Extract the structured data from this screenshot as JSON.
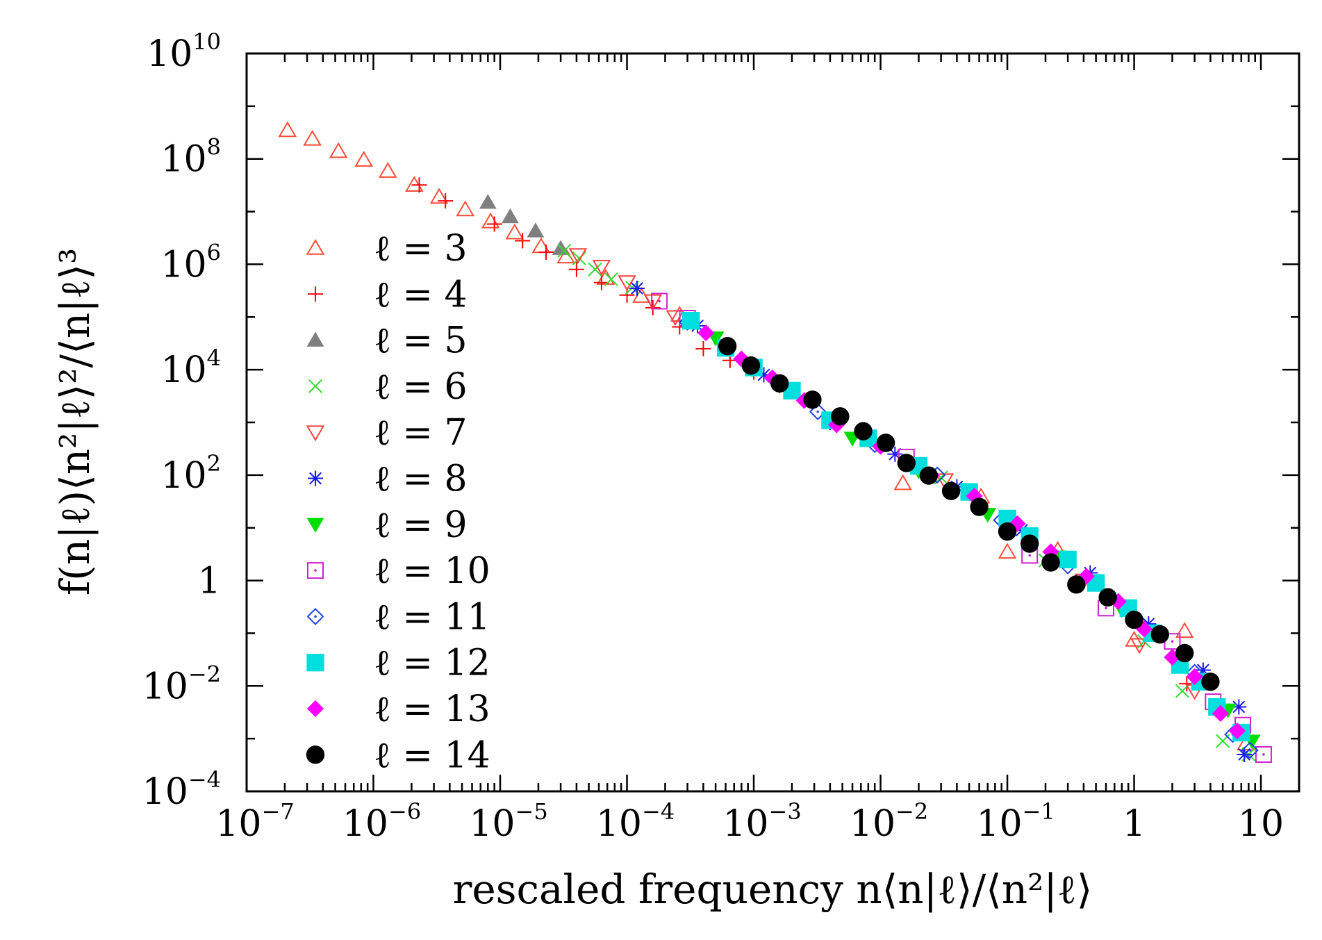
{
  "chart_data": {
    "type": "scatter",
    "xscale": "log",
    "yscale": "log",
    "xlim": [
      1e-07,
      20
    ],
    "ylim": [
      0.0001,
      10000000000.0
    ],
    "grid": false,
    "legend_position": "left",
    "xlabel": "rescaled frequency n⟨n|ℓ⟩/⟨n²|ℓ⟩",
    "ylabel": "f(n|ℓ)⟨n²|ℓ⟩²/⟨n|ℓ⟩³",
    "x_ticks": [
      {
        "value": 1e-07,
        "base": "10",
        "exp": "−7"
      },
      {
        "value": 1e-06,
        "base": "10",
        "exp": "−6"
      },
      {
        "value": 1e-05,
        "base": "10",
        "exp": "−5"
      },
      {
        "value": 0.0001,
        "base": "10",
        "exp": "−4"
      },
      {
        "value": 0.001,
        "base": "10",
        "exp": "−3"
      },
      {
        "value": 0.01,
        "base": "10",
        "exp": "−2"
      },
      {
        "value": 0.1,
        "base": "10",
        "exp": "−1"
      },
      {
        "value": 1,
        "base": "1",
        "exp": ""
      },
      {
        "value": 10,
        "base": "10",
        "exp": ""
      }
    ],
    "y_ticks": [
      {
        "value": 0.0001,
        "base": "10",
        "exp": "−4"
      },
      {
        "value": 0.01,
        "base": "10",
        "exp": "−2"
      },
      {
        "value": 1,
        "base": "1",
        "exp": ""
      },
      {
        "value": 100,
        "base": "10",
        "exp": "2"
      },
      {
        "value": 10000.0,
        "base": "10",
        "exp": "4"
      },
      {
        "value": 1000000.0,
        "base": "10",
        "exp": "6"
      },
      {
        "value": 100000000.0,
        "base": "10",
        "exp": "8"
      },
      {
        "value": 10000000000.0,
        "base": "10",
        "exp": "10"
      }
    ],
    "series": [
      {
        "name": "ℓ = 3",
        "marker": "triangle-open",
        "color": "#ff4d38",
        "points": [
          [
            2.1e-07,
            350000000.0
          ],
          [
            3.3e-07,
            240000000.0
          ],
          [
            5.3e-07,
            140000000.0
          ],
          [
            8.4e-07,
            96000000.0
          ],
          [
            1.3e-06,
            59000000.0
          ],
          [
            2.1e-06,
            32000000.0
          ],
          [
            3.3e-06,
            19000000.0
          ],
          [
            5.3e-06,
            11000000.0
          ],
          [
            8.4e-06,
            6500000.0
          ],
          [
            1.3e-05,
            4000000.0
          ],
          [
            2.1e-05,
            2200000.0
          ],
          [
            3.3e-05,
            1400000.0
          ],
          [
            6.8e-05,
            550000.0
          ],
          [
            0.00013,
            250000.0
          ],
          [
            0.00026,
            110000.0
          ],
          [
            0.015,
            70
          ],
          [
            0.062,
            39
          ],
          [
            0.1,
            3.5
          ],
          [
            0.25,
            3.8
          ],
          [
            1.0,
            0.075
          ],
          [
            2.5,
            0.11
          ],
          [
            7.6,
            0.0008
          ]
        ]
      },
      {
        "name": "ℓ = 4",
        "marker": "plus",
        "color": "#ff0000",
        "points": [
          [
            2.3e-06,
            32000000.0
          ],
          [
            3.7e-06,
            16000000.0
          ],
          [
            9e-06,
            5800000.0
          ],
          [
            1.5e-05,
            2800000.0
          ],
          [
            2.3e-05,
            1700000.0
          ],
          [
            4e-05,
            800000.0
          ],
          [
            6.3e-05,
            450000.0
          ],
          [
            0.0001,
            260000.0
          ],
          [
            0.00016,
            150000.0
          ],
          [
            0.00026,
            65000.0
          ],
          [
            0.0004,
            25000.0
          ],
          [
            0.00065,
            15000.0
          ],
          [
            0.001,
            9000
          ],
          [
            2.6,
            0.011
          ]
        ]
      },
      {
        "name": "ℓ = 5",
        "marker": "triangle-filled",
        "color": "#7f7f7f",
        "points": [
          [
            8e-06,
            15000000.0
          ],
          [
            1.2e-05,
            8000000.0
          ],
          [
            1.9e-05,
            4300000.0
          ],
          [
            3e-05,
            2000000.0
          ]
        ]
      },
      {
        "name": "ℓ = 6",
        "marker": "cross",
        "color": "#33dd33",
        "points": [
          [
            3.2e-05,
            1800000.0
          ],
          [
            4.2e-05,
            1300000.0
          ],
          [
            5.6e-05,
            800000.0
          ],
          [
            7.5e-05,
            520000.0
          ],
          [
            0.00011,
            360000.0
          ],
          [
            0.03,
            90
          ],
          [
            0.2,
            2.4
          ],
          [
            1.2,
            0.07
          ],
          [
            2.4,
            0.008
          ],
          [
            5.0,
            0.0009
          ],
          [
            8.0,
            0.0005
          ]
        ]
      },
      {
        "name": "ℓ = 7",
        "marker": "triangle-down-open",
        "color": "#ff4040",
        "points": [
          [
            4.1e-05,
            1500000.0
          ],
          [
            6.3e-05,
            900000.0
          ],
          [
            0.0001,
            460000.0
          ],
          [
            0.00016,
            200000.0
          ],
          [
            0.00024,
            100000.0
          ],
          [
            0.032,
            80
          ],
          [
            0.4,
            1.0
          ],
          [
            1.1,
            0.06
          ],
          [
            3.0,
            0.008
          ]
        ]
      },
      {
        "name": "ℓ = 8",
        "marker": "asterisk",
        "color": "#1a1aee",
        "points": [
          [
            0.00012,
            350000.0
          ],
          [
            0.00036,
            68000.0
          ],
          [
            0.0012,
            8000
          ],
          [
            0.004,
            1000
          ],
          [
            0.013,
            250
          ],
          [
            0.04,
            60
          ],
          [
            0.13,
            9
          ],
          [
            0.45,
            1.4
          ],
          [
            1.3,
            0.15
          ],
          [
            3.5,
            0.02
          ],
          [
            6.7,
            0.004
          ],
          [
            7.4,
            0.0005
          ]
        ]
      },
      {
        "name": "ℓ = 9",
        "marker": "triangle-down-filled",
        "color": "#00dd00",
        "points": [
          [
            0.0005,
            40000.0
          ],
          [
            0.0016,
            5000
          ],
          [
            0.006,
            500
          ],
          [
            0.02,
            120
          ],
          [
            0.07,
            18
          ],
          [
            0.25,
            2.8
          ],
          [
            0.8,
            0.28
          ],
          [
            2.2,
            0.03
          ],
          [
            5.5,
            0.0035
          ],
          [
            8.5,
            0.0009
          ]
        ]
      },
      {
        "name": "ℓ = 10",
        "marker": "square-open-dot",
        "color": "#cc22cc",
        "points": [
          [
            0.00018,
            200000.0
          ],
          [
            0.0003,
            95000.0
          ],
          [
            0.016,
            220
          ],
          [
            0.15,
            3.0
          ],
          [
            0.6,
            0.3
          ],
          [
            2.0,
            0.07
          ],
          [
            4.2,
            0.005
          ],
          [
            7.2,
            0.0018
          ],
          [
            10.5,
            0.0005
          ]
        ]
      },
      {
        "name": "ℓ = 11",
        "marker": "diamond-open-dot",
        "color": "#2244dd",
        "points": [
          [
            0.0003,
            80000.0
          ],
          [
            0.001,
            12000.0
          ],
          [
            0.0032,
            1600
          ],
          [
            0.009,
            380
          ],
          [
            0.028,
            100
          ],
          [
            0.09,
            14
          ],
          [
            0.3,
            1.9
          ],
          [
            1.0,
            0.18
          ],
          [
            3.0,
            0.018
          ],
          [
            6.0,
            0.0012
          ],
          [
            8.2,
            0.0006
          ]
        ]
      },
      {
        "name": "ℓ = 12",
        "marker": "square-filled",
        "color": "#00dddd",
        "points": [
          [
            0.00032,
            85000.0
          ],
          [
            0.0006,
            26000.0
          ],
          [
            0.001,
            11000.0
          ],
          [
            0.002,
            4000
          ],
          [
            0.004,
            1100
          ],
          [
            0.008,
            500
          ],
          [
            0.02,
            150
          ],
          [
            0.05,
            48
          ],
          [
            0.1,
            15
          ],
          [
            0.15,
            7
          ],
          [
            0.3,
            2.5
          ],
          [
            0.5,
            0.9
          ],
          [
            0.9,
            0.3
          ],
          [
            1.4,
            0.1
          ],
          [
            2.3,
            0.025
          ],
          [
            3.3,
            0.012
          ],
          [
            4.5,
            0.004
          ],
          [
            7.0,
            0.0013
          ]
        ]
      },
      {
        "name": "ℓ = 13",
        "marker": "diamond-filled",
        "color": "#ff00ff",
        "points": [
          [
            0.00042,
            50000.0
          ],
          [
            0.0008,
            16000.0
          ],
          [
            0.0014,
            7000
          ],
          [
            0.0025,
            2600
          ],
          [
            0.0045,
            900
          ],
          [
            0.01,
            350
          ],
          [
            0.025,
            100
          ],
          [
            0.055,
            40
          ],
          [
            0.12,
            12
          ],
          [
            0.22,
            3.5
          ],
          [
            0.42,
            1.2
          ],
          [
            0.75,
            0.4
          ],
          [
            1.2,
            0.12
          ],
          [
            2.0,
            0.035
          ],
          [
            3.0,
            0.015
          ],
          [
            4.8,
            0.003
          ],
          [
            6.5,
            0.0014
          ]
        ]
      },
      {
        "name": "ℓ = 14",
        "marker": "circle-filled",
        "color": "#000000",
        "points": [
          [
            0.00062,
            28000.0
          ],
          [
            0.00095,
            12000.0
          ],
          [
            0.0016,
            5500
          ],
          [
            0.0029,
            2700
          ],
          [
            0.0048,
            1300
          ],
          [
            0.0073,
            680
          ],
          [
            0.011,
            410
          ],
          [
            0.016,
            170
          ],
          [
            0.024,
            98
          ],
          [
            0.036,
            50
          ],
          [
            0.06,
            25
          ],
          [
            0.1,
            8.5
          ],
          [
            0.15,
            5.0
          ],
          [
            0.22,
            2.2
          ],
          [
            0.35,
            0.84
          ],
          [
            0.62,
            0.48
          ],
          [
            1.0,
            0.18
          ],
          [
            1.6,
            0.095
          ],
          [
            2.5,
            0.042
          ],
          [
            4.0,
            0.012
          ]
        ]
      }
    ]
  }
}
